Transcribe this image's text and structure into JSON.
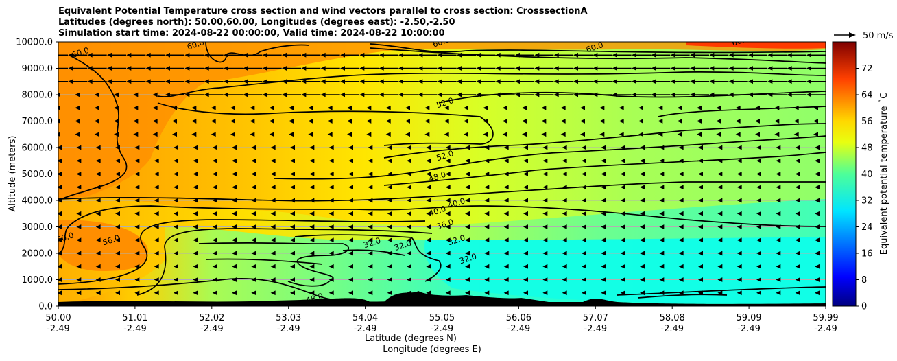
{
  "title_lines": [
    "Equivalent Potential Temperature cross section and wind vectors parallel to cross section: CrosssectionA",
    "Latitudes (degrees north): 50.00,60.00, Longitudes (degrees east): -2.50,-2.50",
    "Simulation start time: 2024-08-22 00:00:00, Valid time: 2024-08-22 10:00:00"
  ],
  "quiver_key": "50 m/s",
  "chart_data": {
    "type": "heatmap",
    "subtype": "cross-section filled contour with line contours and wind vectors",
    "ylabel": "Altitude (meters)",
    "xlabel_lat": "Latitude (degrees N)",
    "xlabel_lon": "Longitude (degrees E)",
    "ylim": [
      0,
      10000
    ],
    "y_ticks": [
      "0.0",
      "1000.0",
      "2000.0",
      "3000.0",
      "4000.0",
      "5000.0",
      "6000.0",
      "7000.0",
      "8000.0",
      "9000.0",
      "10000.0"
    ],
    "x_ticks_lat": [
      "50.00",
      "51.01",
      "52.02",
      "53.03",
      "54.04",
      "55.05",
      "56.06",
      "57.07",
      "58.08",
      "59.09",
      "59.99"
    ],
    "x_ticks_lon": [
      "-2.49",
      "-2.49",
      "-2.49",
      "-2.49",
      "-2.49",
      "-2.49",
      "-2.49",
      "-2.49",
      "-2.49",
      "-2.49",
      "-2.49"
    ],
    "grid": "horizontal",
    "colorbar": {
      "label": "Equivalent potential temperature ˚C",
      "range": [
        0,
        80
      ],
      "ticks": [
        "0",
        "8",
        "16",
        "24",
        "32",
        "40",
        "48",
        "56",
        "64",
        "72"
      ],
      "colormap": "jet"
    },
    "contour_labels": [
      {
        "text": "60.0",
        "x": 0.3,
        "y": 9500
      },
      {
        "text": "60.0",
        "x": 1.8,
        "y": 9800
      },
      {
        "text": "60.0",
        "x": 5.0,
        "y": 9900
      },
      {
        "text": "60.0",
        "x": 7.0,
        "y": 9700
      },
      {
        "text": "60.0",
        "x": 8.9,
        "y": 9950
      },
      {
        "text": "52.0",
        "x": 5.05,
        "y": 7600
      },
      {
        "text": "52.0",
        "x": 5.05,
        "y": 5600
      },
      {
        "text": "48.0",
        "x": 4.95,
        "y": 4800
      },
      {
        "text": "40.0",
        "x": 4.95,
        "y": 3500
      },
      {
        "text": "40.0",
        "x": 5.2,
        "y": 3800
      },
      {
        "text": "36.0",
        "x": 5.05,
        "y": 3000
      },
      {
        "text": "32.0",
        "x": 4.1,
        "y": 2300
      },
      {
        "text": "32.0",
        "x": 4.5,
        "y": 2200
      },
      {
        "text": "32.0",
        "x": 5.2,
        "y": 2400
      },
      {
        "text": "32.0",
        "x": 5.35,
        "y": 1700
      },
      {
        "text": "56.0",
        "x": 0.7,
        "y": 2400
      },
      {
        "text": "60.0",
        "x": 0.1,
        "y": 2500
      },
      {
        "text": "48.0",
        "x": 3.35,
        "y": 200
      }
    ],
    "wind": {
      "direction": "leftward (negative along section)",
      "levels_m": [
        500,
        1000,
        1500,
        2000,
        2500,
        3000,
        3500,
        4000,
        4500,
        5000,
        5500,
        6000,
        6500,
        7000,
        7500,
        8000,
        8500,
        9000,
        9500
      ],
      "strong_upper_levels_m": [
        8000,
        8500,
        9000,
        9500
      ]
    }
  }
}
